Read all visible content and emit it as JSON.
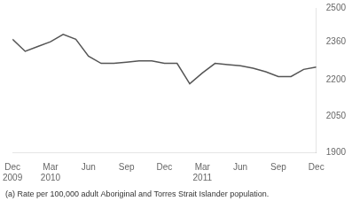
{
  "chart_data": {
    "type": "line",
    "x": [
      0,
      1,
      2,
      3,
      4,
      5,
      6,
      7,
      8,
      9,
      10,
      11,
      12,
      13,
      14,
      15,
      16,
      17,
      18,
      19,
      20,
      21,
      22,
      23,
      24
    ],
    "values": [
      2370,
      2320,
      2340,
      2360,
      2390,
      2370,
      2300,
      2270,
      2270,
      2275,
      2280,
      2280,
      2270,
      2270,
      2185,
      2230,
      2270,
      2265,
      2260,
      2250,
      2235,
      2215,
      2215,
      2245,
      2255
    ],
    "color": "#555555",
    "xlim": [
      0,
      24
    ],
    "xticks": [
      {
        "value": 0,
        "label": "Dec\n2009"
      },
      {
        "value": 3,
        "label": "Mar\n2010"
      },
      {
        "value": 6,
        "label": "Jun"
      },
      {
        "value": 9,
        "label": "Sep"
      },
      {
        "value": 12,
        "label": "Dec"
      },
      {
        "value": 15,
        "label": "Mar\n2011"
      },
      {
        "value": 18,
        "label": "Jun"
      },
      {
        "value": 21,
        "label": "Sep"
      },
      {
        "value": 24,
        "label": "Dec"
      }
    ],
    "ylim": [
      1900,
      2500
    ],
    "yticks": [
      1900,
      2050,
      2200,
      2360,
      2500
    ],
    "grid": false,
    "annotations": [
      "(a) Rate per 100,000 adult Aboriginal and Torres Strait Islander population."
    ]
  }
}
